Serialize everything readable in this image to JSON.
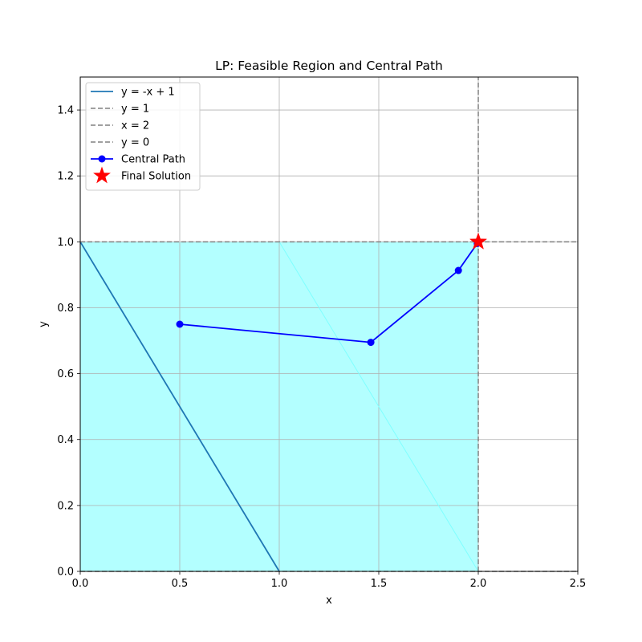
{
  "chart_data": {
    "type": "line",
    "title": "LP: Feasible Region and Central Path",
    "xlabel": "x",
    "ylabel": "y",
    "xlim": [
      0.0,
      2.5
    ],
    "ylim": [
      0.0,
      1.5
    ],
    "xticks": [
      "0.0",
      "0.5",
      "1.0",
      "1.5",
      "2.0",
      "2.5"
    ],
    "yticks": [
      "0.0",
      "0.2",
      "0.4",
      "0.6",
      "0.8",
      "1.0",
      "1.2",
      "1.4"
    ],
    "grid": true,
    "legend_position": "top-left",
    "feasible_region": {
      "color": "#b3ffff",
      "polygon": [
        [
          0,
          0
        ],
        [
          2,
          0
        ],
        [
          2,
          1
        ],
        [
          0,
          1
        ]
      ]
    },
    "series": [
      {
        "name": "y = -x + 1",
        "style": "solid",
        "color": "#1f77b4",
        "x": [
          0,
          1
        ],
        "y": [
          1,
          0
        ]
      },
      {
        "name": "y = 1",
        "style": "dashed",
        "color": "#808080",
        "x": [
          0,
          2.5
        ],
        "y": [
          1,
          1
        ]
      },
      {
        "name": "x = 2",
        "style": "dashed",
        "color": "#808080",
        "x": [
          2,
          2
        ],
        "y": [
          0,
          1.5
        ]
      },
      {
        "name": "y = 0",
        "style": "dashed",
        "color": "#808080",
        "x": [
          0,
          2.5
        ],
        "y": [
          0,
          0
        ]
      },
      {
        "name": "Central Path",
        "style": "solid-marker",
        "color": "#0000ff",
        "x": [
          0.5,
          1.46,
          1.9,
          1.995
        ],
        "y": [
          0.75,
          0.695,
          0.913,
          0.995
        ]
      },
      {
        "name": "Final Solution",
        "style": "star",
        "color": "#ff0000",
        "x": [
          2.0
        ],
        "y": [
          1.0
        ]
      }
    ],
    "extra_line": {
      "color": "#80ffff",
      "x": [
        1,
        2
      ],
      "y": [
        1,
        0
      ]
    }
  }
}
